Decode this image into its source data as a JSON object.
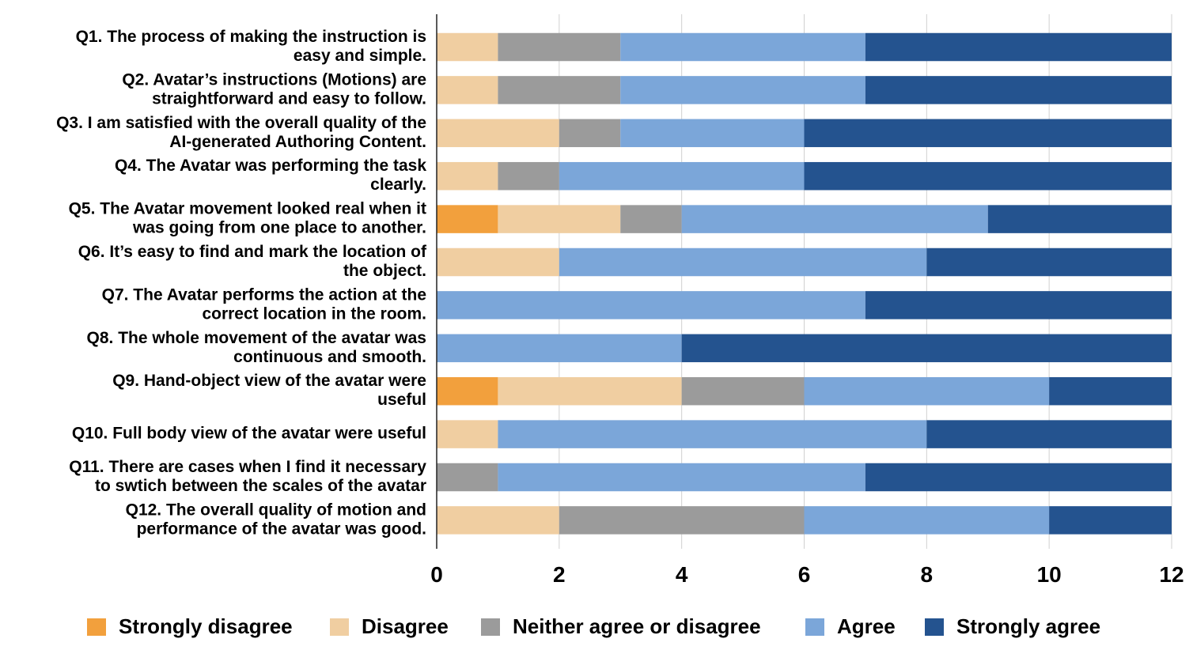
{
  "chart_data": {
    "type": "bar",
    "orientation": "horizontal",
    "stacked": true,
    "title": "",
    "xlabel": "",
    "ylabel": "",
    "xlim": [
      0,
      12
    ],
    "xticks": [
      0,
      2,
      4,
      6,
      8,
      10,
      12
    ],
    "grid": true,
    "legend_position": "bottom",
    "categories": [
      [
        "Q1. The process of making the instruction is",
        "easy and simple."
      ],
      [
        "Q2. Avatar’s instructions (Motions) are",
        "straightforward and easy to follow."
      ],
      [
        "Q3. I am satisfied with the overall quality of the",
        "AI-generated Authoring Content."
      ],
      [
        "Q4. The Avatar was performing the task",
        "clearly."
      ],
      [
        "Q5. The Avatar movement looked real when it",
        "was going from one place to another."
      ],
      [
        "Q6. It’s easy to find and mark the location of",
        "the object."
      ],
      [
        "Q7. The Avatar performs the action at the",
        "correct location in the room."
      ],
      [
        "Q8. The whole movement of the avatar was",
        "continuous and smooth."
      ],
      [
        "Q9.  Hand-object view of the avatar were",
        "useful"
      ],
      [
        "Q10.  Full body view of the avatar were useful"
      ],
      [
        "Q11. There are cases when I find it necessary",
        "to swtich between the scales of the avatar"
      ],
      [
        "Q12. The overall quality of motion and",
        "performance of the avatar was good."
      ]
    ],
    "series": [
      {
        "name": "Strongly disagree",
        "color": "#f2a03d",
        "values": [
          0,
          0,
          0,
          0,
          1,
          0,
          0,
          0,
          1,
          0,
          0,
          0
        ]
      },
      {
        "name": "Disagree",
        "color": "#f0cea1",
        "values": [
          1,
          1,
          2,
          1,
          2,
          2,
          0,
          0,
          3,
          1,
          0,
          2
        ]
      },
      {
        "name": "Neither agree or disagree",
        "color": "#9b9b9b",
        "values": [
          2,
          2,
          1,
          1,
          1,
          0,
          0,
          0,
          2,
          0,
          1,
          4
        ]
      },
      {
        "name": "Agree",
        "color": "#7ba6d9",
        "values": [
          4,
          4,
          3,
          4,
          5,
          6,
          7,
          4,
          4,
          7,
          6,
          4
        ]
      },
      {
        "name": "Strongly agree",
        "color": "#24538f",
        "values": [
          5,
          5,
          6,
          6,
          3,
          4,
          5,
          8,
          2,
          4,
          5,
          2
        ]
      }
    ]
  }
}
